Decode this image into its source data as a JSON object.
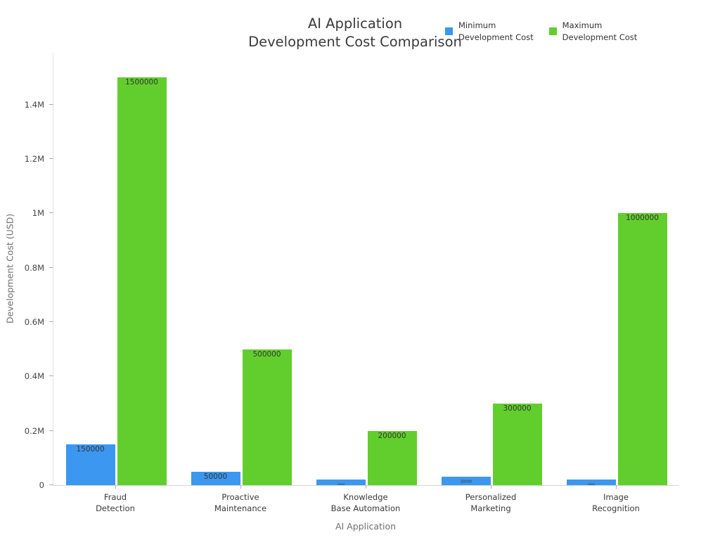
{
  "legend": {
    "items": [
      {
        "label": "Minimum\nDevelopment Cost",
        "color": "#3B97F0"
      },
      {
        "label": "Maximum\nDevelopment Cost",
        "color": "#62CE2D"
      }
    ]
  },
  "chart_data": {
    "type": "bar",
    "title": "AI Application\nDevelopment Cost Comparison",
    "xlabel": "AI Application",
    "ylabel": "Development Cost (USD)",
    "categories": [
      "Fraud\nDetection",
      "Proactive\nMaintenance",
      "Knowledge\nBase Automation",
      "Personalized\nMarketing",
      "Image\nRecognition"
    ],
    "series": [
      {
        "name": "Minimum Development Cost",
        "color": "#3B97F0",
        "values": [
          150000,
          50000,
          20000,
          30000,
          20000
        ]
      },
      {
        "name": "Maximum Development Cost",
        "color": "#62CE2D",
        "values": [
          1500000,
          500000,
          200000,
          300000,
          1000000
        ]
      }
    ],
    "bar_value_labels": [
      "150000",
      "50000",
      "20000",
      "30000",
      "20000",
      "1500000",
      "500000",
      "200000",
      "300000",
      "1000000"
    ],
    "ylim": [
      0,
      1590000
    ],
    "yticks": [
      {
        "value": 0,
        "label": "0"
      },
      {
        "value": 200000,
        "label": "0.2M"
      },
      {
        "value": 400000,
        "label": "0.4M"
      },
      {
        "value": 600000,
        "label": "0.6M"
      },
      {
        "value": 800000,
        "label": "0.8M"
      },
      {
        "value": 1000000,
        "label": "1M"
      },
      {
        "value": 1200000,
        "label": "1.2M"
      },
      {
        "value": 1400000,
        "label": "1.4M"
      }
    ],
    "grid": false,
    "legend_position": "top-right"
  }
}
